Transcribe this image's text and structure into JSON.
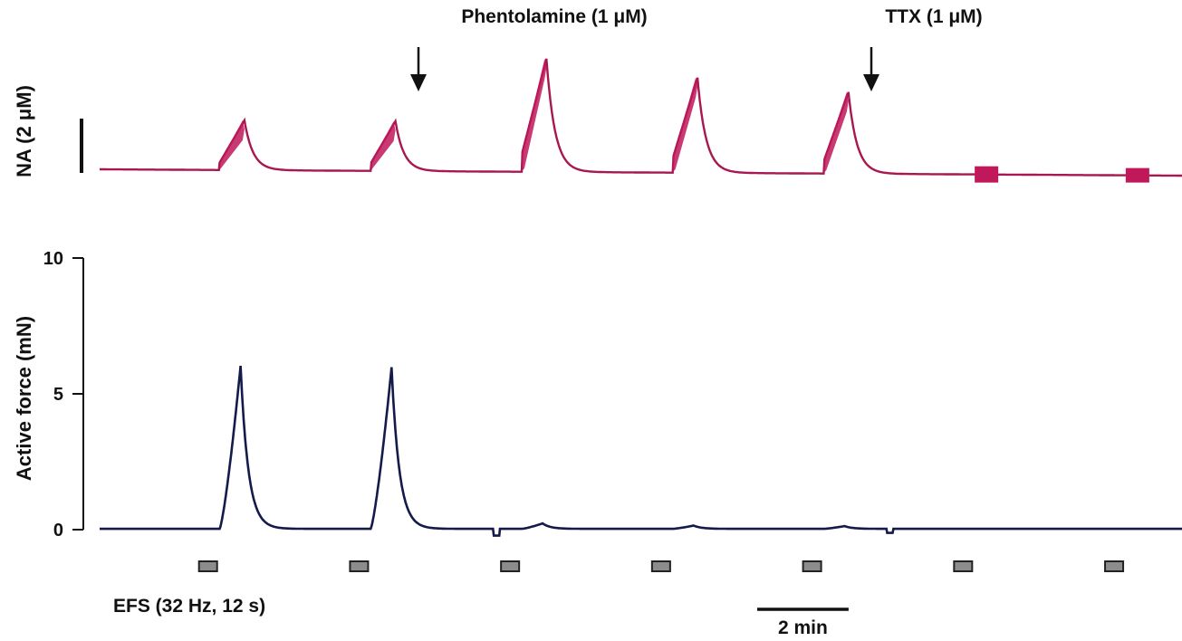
{
  "chart_data": [
    {
      "type": "line",
      "ylabel": "NA (2 μM)",
      "annotations": [
        {
          "text": "Phentolamine (1 μM)",
          "time_min": 4.25
        },
        {
          "text": "TTX (1 μM)",
          "time_min": 10.2
        }
      ],
      "series": [
        {
          "color": "#a8174f",
          "fill": "#c0185a",
          "peaks": [
            {
              "t": 1.55,
              "amp": 0.55
            },
            {
              "t": 3.5,
              "amp": 0.55
            },
            {
              "t": 5.45,
              "amp": 1.25
            },
            {
              "t": 7.4,
              "amp": 1.05
            },
            {
              "t": 9.35,
              "amp": 0.9
            }
          ],
          "blocks": [
            {
              "t": 11.3,
              "amp": 0.18
            },
            {
              "t": 13.25,
              "amp": 0.16
            }
          ]
        }
      ]
    },
    {
      "type": "line",
      "ylabel": "Active force (mN)",
      "ylim": [
        0,
        10
      ],
      "yticks": [
        0,
        5,
        10
      ],
      "series": [
        {
          "color": "#141a4a",
          "peaks": [
            {
              "t": 1.55,
              "amp": 6.0
            },
            {
              "t": 3.5,
              "amp": 5.95
            },
            {
              "t": 5.45,
              "amp": 0.2
            },
            {
              "t": 7.4,
              "amp": 0.12
            },
            {
              "t": 9.35,
              "amp": 0.1
            }
          ]
        }
      ],
      "stimuli_label": "EFS (32 Hz, 12 s)",
      "stimuli_times_min": [
        1.4,
        3.35,
        5.3,
        7.25,
        9.2,
        11.15,
        13.1
      ],
      "scale_bar": {
        "label": "2 min",
        "minutes": 2
      }
    }
  ]
}
